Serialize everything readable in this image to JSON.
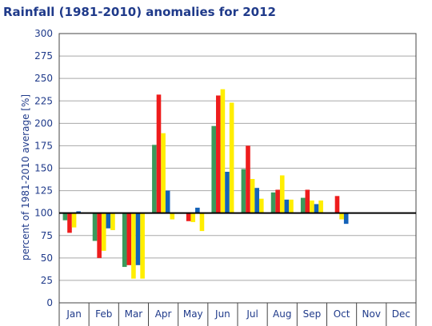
{
  "chart_data": {
    "type": "bar",
    "title": "Rainfall (1981-2010) anomalies for 2012",
    "ylabel": "percent of 1981-2010 average [%]",
    "xlabel": "",
    "baseline": 100,
    "ylim": [
      0,
      300
    ],
    "yticks": [
      0,
      25,
      50,
      75,
      100,
      125,
      150,
      175,
      200,
      225,
      250,
      275,
      300
    ],
    "grid": true,
    "categories": [
      "Jan",
      "Feb",
      "Mar",
      "Apr",
      "May",
      "Jun",
      "Jul",
      "Aug",
      "Sep",
      "Oct",
      "Nov",
      "Dec"
    ],
    "series": [
      {
        "color": "#3a9a5c",
        "values": [
          92,
          69,
          40,
          176,
          null,
          197,
          149,
          123,
          117,
          null,
          null,
          null
        ]
      },
      {
        "color": "#ee1c1c",
        "values": [
          78,
          50,
          42,
          232,
          91,
          231,
          175,
          126,
          126,
          119,
          null,
          null
        ]
      },
      {
        "color": "#ffee00",
        "values": [
          84,
          58,
          27,
          189,
          90,
          238,
          138,
          142,
          114,
          93,
          null,
          null
        ]
      },
      {
        "color": "#1462b8",
        "values": [
          102,
          83,
          42,
          125,
          106,
          146,
          128,
          115,
          110,
          88,
          null,
          null
        ]
      },
      {
        "color": "#ffee00",
        "values": [
          null,
          81,
          27,
          93,
          80,
          223,
          116,
          115,
          114,
          null,
          null,
          null
        ]
      }
    ]
  }
}
